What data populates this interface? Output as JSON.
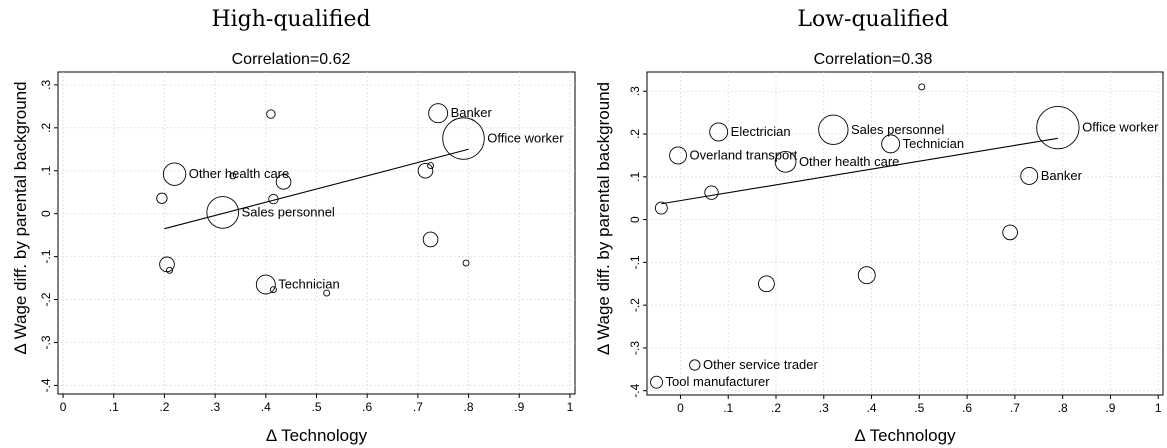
{
  "chart_data": [
    {
      "type": "scatter",
      "title": "High-qualified",
      "subtitle": "Correlation=0.62",
      "xlabel": "Δ Technology",
      "ylabel": "Δ Wage diff. by parental background",
      "xlim": [
        -0.01,
        1.01
      ],
      "ylim": [
        -0.42,
        0.33
      ],
      "xticks": [
        0,
        0.1,
        0.2,
        0.3,
        0.4,
        0.5,
        0.6,
        0.7,
        0.8,
        0.9,
        1
      ],
      "xtick_labels": [
        "0",
        ".1",
        ".2",
        ".3",
        ".4",
        ".5",
        ".6",
        ".7",
        ".8",
        ".9",
        "1"
      ],
      "yticks": [
        -0.4,
        -0.3,
        -0.2,
        -0.1,
        0,
        0.1,
        0.2,
        0.3
      ],
      "ytick_labels": [
        "-.4",
        "-.3",
        "-.2",
        "-.1",
        "0",
        ".1",
        ".2",
        ".3"
      ],
      "grid": true,
      "fit_line": [
        [
          0.2,
          -0.035
        ],
        [
          0.8,
          0.15
        ]
      ],
      "points": [
        {
          "x": 0.41,
          "y": 0.232,
          "size": 0.02,
          "label": ""
        },
        {
          "x": 0.74,
          "y": 0.234,
          "size": 0.1,
          "label": "Banker"
        },
        {
          "x": 0.79,
          "y": 0.175,
          "size": 0.48,
          "label": "Office worker"
        },
        {
          "x": 0.725,
          "y": 0.112,
          "size": 0.008,
          "label": ""
        },
        {
          "x": 0.715,
          "y": 0.1,
          "size": 0.06,
          "label": ""
        },
        {
          "x": 0.22,
          "y": 0.092,
          "size": 0.14,
          "label": "Other health care"
        },
        {
          "x": 0.335,
          "y": 0.088,
          "size": 0.008,
          "label": ""
        },
        {
          "x": 0.435,
          "y": 0.074,
          "size": 0.06,
          "label": ""
        },
        {
          "x": 0.195,
          "y": 0.036,
          "size": 0.03,
          "label": ""
        },
        {
          "x": 0.415,
          "y": 0.034,
          "size": 0.025,
          "label": ""
        },
        {
          "x": 0.315,
          "y": 0.003,
          "size": 0.28,
          "label": "Sales personnel"
        },
        {
          "x": 0.725,
          "y": -0.06,
          "size": 0.06,
          "label": ""
        },
        {
          "x": 0.205,
          "y": -0.118,
          "size": 0.06,
          "label": ""
        },
        {
          "x": 0.21,
          "y": -0.132,
          "size": 0.008,
          "label": ""
        },
        {
          "x": 0.795,
          "y": -0.115,
          "size": 0.008,
          "label": ""
        },
        {
          "x": 0.4,
          "y": -0.165,
          "size": 0.1,
          "label": "Technician"
        },
        {
          "x": 0.415,
          "y": -0.177,
          "size": 0.008,
          "label": ""
        },
        {
          "x": 0.52,
          "y": -0.185,
          "size": 0.008,
          "label": ""
        }
      ]
    },
    {
      "type": "scatter",
      "title": "Low-qualified",
      "subtitle": "Correlation=0.38",
      "xlabel": "Δ Technology",
      "ylabel": "Δ Wage diff. by parental background",
      "xlim": [
        -0.07,
        1.01
      ],
      "ylim": [
        -0.41,
        0.345
      ],
      "xticks": [
        0,
        0.1,
        0.2,
        0.3,
        0.4,
        0.5,
        0.6,
        0.7,
        0.8,
        0.9,
        1
      ],
      "xtick_labels": [
        "0",
        ".1",
        ".2",
        ".3",
        ".4",
        ".5",
        ".6",
        ".7",
        ".8",
        ".9",
        "1"
      ],
      "yticks": [
        -0.4,
        -0.3,
        -0.2,
        -0.1,
        0,
        0.1,
        0.2,
        0.3
      ],
      "ytick_labels": [
        "-.4",
        "-.3",
        "-.2",
        "-.1",
        "0",
        ".1",
        ".2",
        ".3"
      ],
      "grid": true,
      "fit_line": [
        [
          -0.04,
          0.037
        ],
        [
          0.79,
          0.19
        ]
      ],
      "points": [
        {
          "x": 0.505,
          "y": 0.31,
          "size": 0.01,
          "label": ""
        },
        {
          "x": 0.08,
          "y": 0.205,
          "size": 0.09,
          "label": "Electrician"
        },
        {
          "x": 0.32,
          "y": 0.21,
          "size": 0.24,
          "label": "Sales personnel"
        },
        {
          "x": 0.79,
          "y": 0.215,
          "size": 0.5,
          "label": "Office worker"
        },
        {
          "x": 0.44,
          "y": 0.177,
          "size": 0.09,
          "label": "Technician"
        },
        {
          "x": -0.005,
          "y": 0.15,
          "size": 0.08,
          "label": "Overland transport"
        },
        {
          "x": 0.22,
          "y": 0.135,
          "size": 0.12,
          "label": "Other health care"
        },
        {
          "x": 0.73,
          "y": 0.102,
          "size": 0.08,
          "label": "Banker"
        },
        {
          "x": 0.065,
          "y": 0.063,
          "size": 0.05,
          "label": ""
        },
        {
          "x": -0.04,
          "y": 0.027,
          "size": 0.04,
          "label": ""
        },
        {
          "x": 0.69,
          "y": -0.03,
          "size": 0.06,
          "label": ""
        },
        {
          "x": 0.39,
          "y": -0.13,
          "size": 0.08,
          "label": ""
        },
        {
          "x": 0.18,
          "y": -0.15,
          "size": 0.07,
          "label": ""
        },
        {
          "x": 0.03,
          "y": -0.34,
          "size": 0.03,
          "label": "Other service trader"
        },
        {
          "x": -0.05,
          "y": -0.38,
          "size": 0.04,
          "label": "Tool manufacturer"
        }
      ]
    }
  ]
}
